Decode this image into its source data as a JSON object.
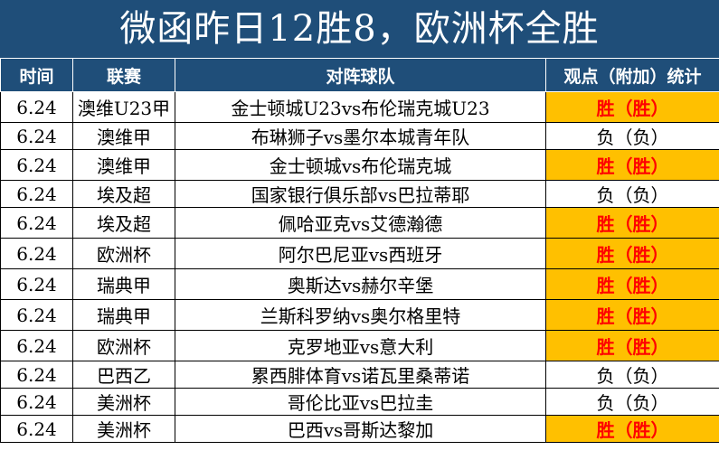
{
  "title": "微函昨日12胜8，欧洲杯全胜",
  "colors": {
    "header_bg": "#1f4e79",
    "win_bg": "#ffc000",
    "win_text": "#ff0000"
  },
  "headers": {
    "time": "时间",
    "league": "联赛",
    "match": "对阵球队",
    "result": "观点（附加）统计"
  },
  "rows": [
    {
      "time": "6.24",
      "league": "澳维U23甲",
      "match": "金士顿城U23vs布伦瑞克城U23",
      "result": "胜（胜）",
      "win": true
    },
    {
      "time": "6.24",
      "league": "澳维甲",
      "match": "布琳狮子vs墨尔本城青年队",
      "result": "负（负）",
      "win": false
    },
    {
      "time": "6.24",
      "league": "澳维甲",
      "match": "金士顿城vs布伦瑞克城",
      "result": "胜（胜）",
      "win": true
    },
    {
      "time": "6.24",
      "league": "埃及超",
      "match": "国家银行俱乐部vs巴拉蒂耶",
      "result": "负（负）",
      "win": false
    },
    {
      "time": "6.24",
      "league": "埃及超",
      "match": "佩哈亚克vs艾德瀚德",
      "result": "胜（胜）",
      "win": true
    },
    {
      "time": "6.24",
      "league": "欧洲杯",
      "match": "阿尔巴尼亚vs西班牙",
      "result": "胜（胜）",
      "win": true
    },
    {
      "time": "6.24",
      "league": "瑞典甲",
      "match": "奥斯达vs赫尔辛堡",
      "result": "胜（胜）",
      "win": true
    },
    {
      "time": "6.24",
      "league": "瑞典甲",
      "match": "兰斯科罗纳vs奥尔格里特",
      "result": "胜（胜）",
      "win": true
    },
    {
      "time": "6.24",
      "league": "欧洲杯",
      "match": "克罗地亚vs意大利",
      "result": "胜（胜）",
      "win": true
    },
    {
      "time": "6.24",
      "league": "巴西乙",
      "match": "累西腓体育vs诺瓦里桑蒂诺",
      "result": "负（负）",
      "win": false
    },
    {
      "time": "6.24",
      "league": "美洲杯",
      "match": "哥伦比亚vs巴拉圭",
      "result": "负（负）",
      "win": false
    },
    {
      "time": "6.24",
      "league": "美洲杯",
      "match": "巴西vs哥斯达黎加",
      "result": "胜（胜）",
      "win": true
    }
  ]
}
